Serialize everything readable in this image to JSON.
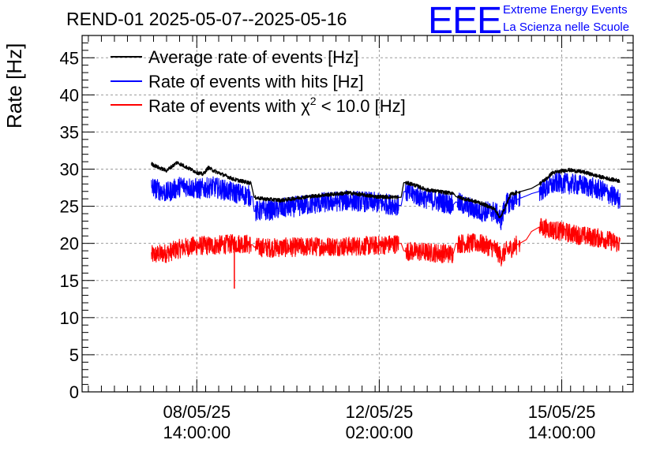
{
  "chart_data": {
    "type": "line",
    "title": "REND-01 2025-05-07--2025-05-16",
    "ylabel": "Rate [Hz]",
    "xlabel": "",
    "ylim": [
      0,
      48
    ],
    "yticks": [
      0,
      5,
      10,
      15,
      20,
      25,
      30,
      35,
      40,
      45
    ],
    "grid": true,
    "legend_position": "top-left",
    "x_ticks": [
      {
        "label_date": "08/05/25",
        "label_time": "14:00:00",
        "day": 1.58
      },
      {
        "label_date": "12/05/25",
        "label_time": "02:00:00",
        "day": 5.08
      },
      {
        "label_date": "15/05/25",
        "label_time": "14:00:00",
        "day": 8.58
      }
    ],
    "xlim_days": [
      -0.62,
      9.95
    ],
    "x_unit": "days since 2025-05-07 00:00",
    "series": [
      {
        "name": "Average rate of events [Hz]",
        "color": "#000000",
        "noise": 0.25,
        "points": [
          [
            0.71,
            30.7
          ],
          [
            0.85,
            30.2
          ],
          [
            1.0,
            29.8
          ],
          [
            1.2,
            30.9
          ],
          [
            1.4,
            30.2
          ],
          [
            1.6,
            29.5
          ],
          [
            1.7,
            29.3
          ],
          [
            1.8,
            30.2
          ],
          [
            1.9,
            29.8
          ],
          [
            2.1,
            29.2
          ],
          [
            2.3,
            28.6
          ],
          [
            2.5,
            28.3
          ],
          [
            2.62,
            28.1
          ],
          [
            2.68,
            26.2
          ],
          [
            2.85,
            26.0
          ],
          [
            3.2,
            25.8
          ],
          [
            3.6,
            26.2
          ],
          [
            4.0,
            26.5
          ],
          [
            4.5,
            26.8
          ],
          [
            5.0,
            26.3
          ],
          [
            5.5,
            26.2
          ],
          [
            5.55,
            28.2
          ],
          [
            5.7,
            28.0
          ],
          [
            6.0,
            27.2
          ],
          [
            6.4,
            26.8
          ],
          [
            6.5,
            26.8
          ],
          [
            6.55,
            26.3
          ],
          [
            7.0,
            25.5
          ],
          [
            7.3,
            24.6
          ],
          [
            7.4,
            23.4
          ],
          [
            7.6,
            26.6
          ],
          [
            8.0,
            27.4
          ],
          [
            8.15,
            28.0
          ],
          [
            8.3,
            28.8
          ],
          [
            8.4,
            29.5
          ],
          [
            8.7,
            29.9
          ],
          [
            9.0,
            29.6
          ],
          [
            9.3,
            29.0
          ],
          [
            9.55,
            28.6
          ],
          [
            9.7,
            28.4
          ]
        ]
      },
      {
        "name": "Rate of events with hits [Hz]",
        "color": "#0000ff",
        "noise": 1.4,
        "points": [
          [
            0.71,
            27.6
          ],
          [
            1.0,
            26.8
          ],
          [
            1.3,
            27.8
          ],
          [
            1.6,
            27.3
          ],
          [
            1.9,
            27.6
          ],
          [
            2.2,
            27.0
          ],
          [
            2.45,
            26.6
          ],
          [
            2.65,
            26.3
          ],
          [
            2.68,
            24.3
          ],
          [
            3.0,
            24.5
          ],
          [
            3.5,
            25.0
          ],
          [
            4.0,
            25.5
          ],
          [
            4.5,
            25.8
          ],
          [
            5.0,
            25.5
          ],
          [
            5.5,
            25.1
          ],
          [
            5.55,
            27.0
          ],
          [
            6.0,
            26.0
          ],
          [
            6.5,
            25.2
          ],
          [
            6.55,
            25.6
          ],
          [
            7.0,
            24.3
          ],
          [
            7.3,
            24.3
          ],
          [
            7.42,
            23.1
          ],
          [
            7.5,
            25.3
          ],
          [
            7.9,
            26.4
          ],
          [
            8.0,
            26.7
          ],
          [
            8.15,
            27.0
          ],
          [
            8.5,
            28.2
          ],
          [
            9.0,
            27.8
          ],
          [
            9.4,
            27.0
          ],
          [
            9.7,
            25.8
          ]
        ]
      },
      {
        "name": "Rate of events with χ² < 10.0 [Hz]",
        "color": "#ff0000",
        "noise": 1.3,
        "points": [
          [
            0.71,
            18.4
          ],
          [
            1.0,
            18.7
          ],
          [
            1.3,
            19.4
          ],
          [
            1.6,
            19.7
          ],
          [
            1.9,
            19.7
          ],
          [
            2.2,
            19.9
          ],
          [
            2.45,
            20.0
          ],
          [
            2.65,
            19.8
          ],
          [
            2.68,
            19.5
          ],
          [
            3.0,
            19.4
          ],
          [
            3.5,
            19.5
          ],
          [
            4.0,
            19.6
          ],
          [
            4.5,
            19.6
          ],
          [
            5.0,
            19.7
          ],
          [
            5.5,
            20.0
          ],
          [
            5.55,
            19.0
          ],
          [
            6.0,
            18.8
          ],
          [
            6.5,
            18.6
          ],
          [
            6.55,
            20.0
          ],
          [
            7.0,
            20.0
          ],
          [
            7.3,
            19.3
          ],
          [
            7.42,
            18.2
          ],
          [
            7.5,
            18.9
          ],
          [
            7.9,
            20.5
          ],
          [
            8.0,
            21.6
          ],
          [
            8.15,
            22.2
          ],
          [
            8.5,
            21.7
          ],
          [
            9.0,
            21.0
          ],
          [
            9.4,
            20.6
          ],
          [
            9.7,
            19.9
          ]
        ]
      }
    ],
    "annotations": [
      {
        "text": "χ²",
        "note": "Greek chi squared in legend"
      }
    ]
  },
  "logo": {
    "mark": "EEE",
    "line1": "Extreme Energy Events",
    "line2": "La Scienza nelle Scuole",
    "color": "#0000ff"
  },
  "legend": {
    "items": [
      {
        "prefix": "Average rate of events [Hz]",
        "color": "#000000"
      },
      {
        "prefix": "Rate of events with hits [Hz]",
        "color": "#0000ff"
      },
      {
        "prefix": "Rate of events with ",
        "chi": "χ",
        "sup": "2",
        "suffix": " < 10.0 [Hz]",
        "color": "#ff0000"
      }
    ]
  },
  "spikes": [
    {
      "series": 2,
      "day": 2.3,
      "value": 13.9
    }
  ]
}
